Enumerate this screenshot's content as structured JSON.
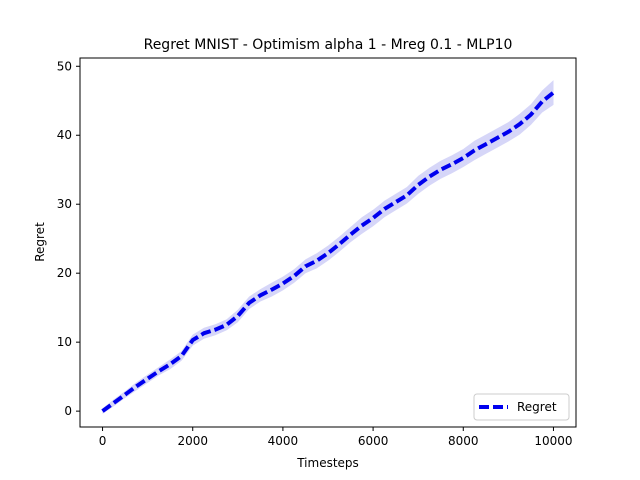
{
  "chart_data": {
    "type": "line",
    "title": "Regret MNIST - Optimism alpha 1 - Mreg 0.1 - MLP10",
    "xlabel": "Timesteps",
    "ylabel": "Regret",
    "xlim": [
      -500,
      10500
    ],
    "ylim": [
      -2.3,
      51.2
    ],
    "xticks": [
      0,
      2000,
      4000,
      6000,
      8000,
      10000
    ],
    "xtick_labels": [
      "0",
      "2000",
      "4000",
      "6000",
      "8000",
      "10000"
    ],
    "yticks": [
      0,
      10,
      20,
      30,
      40,
      50
    ],
    "ytick_labels": [
      "0",
      "10",
      "20",
      "30",
      "40",
      "50"
    ],
    "grid": false,
    "legend_position": "lower-right",
    "line_style": "dashed",
    "colors": {
      "line": "#0000ee",
      "band": "#c8c8f5"
    },
    "series": [
      {
        "name": "Regret",
        "x": [
          0,
          250,
          500,
          750,
          1000,
          1250,
          1500,
          1750,
          2000,
          2250,
          2500,
          2750,
          3000,
          3250,
          3500,
          3750,
          4000,
          4250,
          4500,
          4750,
          5000,
          5250,
          5500,
          5750,
          6000,
          6250,
          6500,
          6750,
          7000,
          7250,
          7500,
          7750,
          8000,
          8250,
          8500,
          8750,
          9000,
          9250,
          9500,
          9750,
          10000
        ],
        "y": [
          0,
          1.2,
          2.4,
          3.6,
          4.7,
          5.8,
          6.8,
          8.0,
          10.3,
          11.3,
          11.8,
          12.5,
          13.8,
          15.7,
          16.8,
          17.6,
          18.5,
          19.6,
          21.0,
          21.8,
          22.9,
          24.2,
          25.6,
          26.9,
          28.0,
          29.3,
          30.3,
          31.3,
          32.8,
          34.0,
          35.0,
          35.8,
          36.7,
          37.8,
          38.7,
          39.6,
          40.5,
          41.6,
          43.0,
          44.9,
          46.2
        ],
        "band_width": [
          0.4,
          0.5,
          0.5,
          0.6,
          0.6,
          0.6,
          0.7,
          0.7,
          0.8,
          0.8,
          0.8,
          0.8,
          0.9,
          0.9,
          0.9,
          1.0,
          1.0,
          1.0,
          1.0,
          1.1,
          1.1,
          1.1,
          1.1,
          1.2,
          1.2,
          1.2,
          1.2,
          1.2,
          1.3,
          1.3,
          1.3,
          1.3,
          1.3,
          1.4,
          1.4,
          1.4,
          1.4,
          1.5,
          1.5,
          1.6,
          1.8
        ]
      }
    ]
  }
}
